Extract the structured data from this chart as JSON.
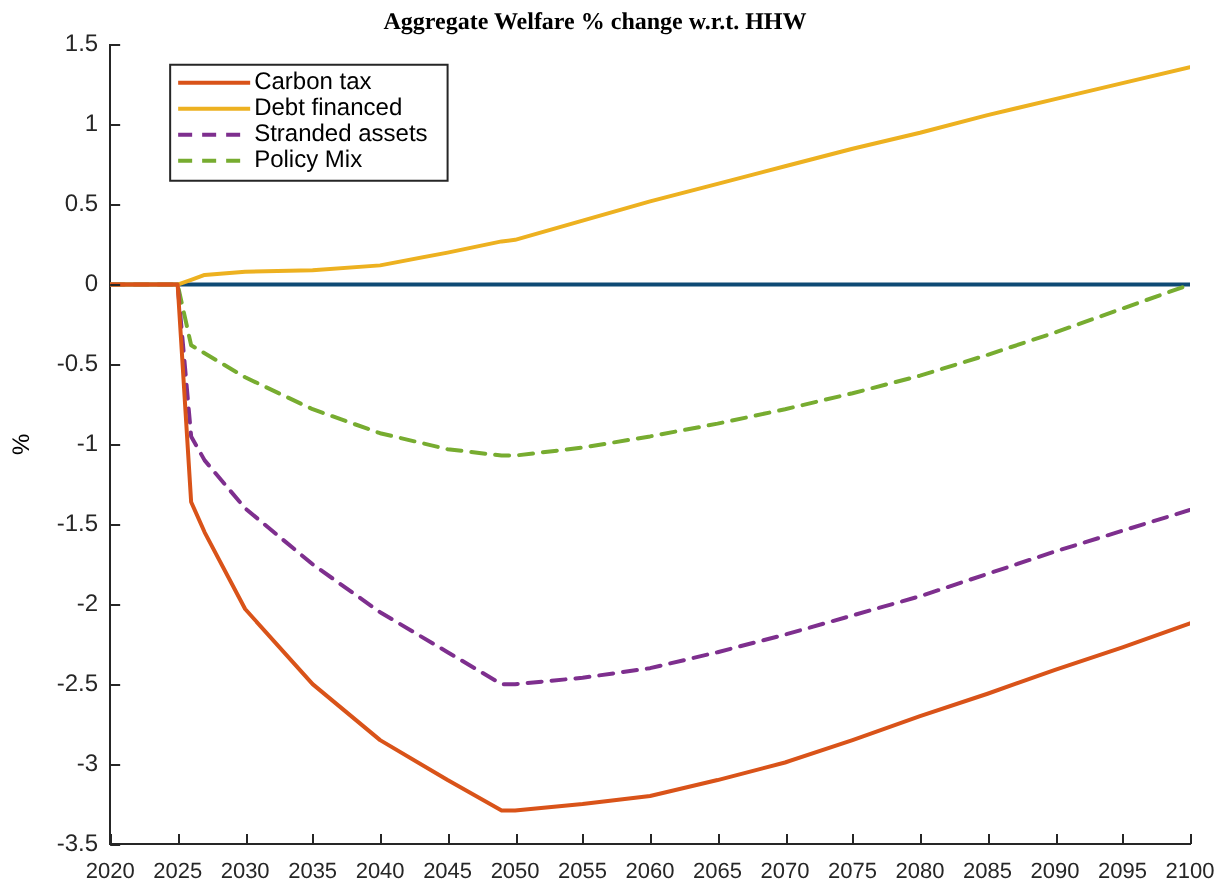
{
  "chart_data": {
    "type": "line",
    "title": "Aggregate Welfare % change w.r.t. HHW",
    "ylabel": "%",
    "x": [
      2020,
      2025,
      2026,
      2027,
      2030,
      2035,
      2040,
      2045,
      2049,
      2050,
      2055,
      2060,
      2065,
      2070,
      2075,
      2080,
      2085,
      2090,
      2095,
      2100
    ],
    "series": [
      {
        "name": "Carbon tax",
        "color": "#d95319",
        "line_style": "solid",
        "values": [
          0,
          0,
          -1.36,
          -1.55,
          -2.03,
          -2.5,
          -2.85,
          -3.1,
          -3.29,
          -3.29,
          -3.25,
          -3.2,
          -3.1,
          -2.99,
          -2.85,
          -2.7,
          -2.56,
          -2.41,
          -2.27,
          -2.12
        ]
      },
      {
        "name": "Debt financed",
        "color": "#edb120",
        "line_style": "solid",
        "values": [
          0,
          0,
          0.03,
          0.06,
          0.08,
          0.09,
          0.12,
          0.2,
          0.27,
          0.28,
          0.4,
          0.52,
          0.63,
          0.74,
          0.85,
          0.95,
          1.06,
          1.16,
          1.26,
          1.36
        ]
      },
      {
        "name": "Stranded assets",
        "color": "#7e2f8e",
        "line_style": "dashed",
        "values": [
          0,
          0,
          -0.95,
          -1.1,
          -1.4,
          -1.75,
          -2.05,
          -2.3,
          -2.5,
          -2.5,
          -2.46,
          -2.4,
          -2.3,
          -2.19,
          -2.07,
          -1.95,
          -1.81,
          -1.67,
          -1.54,
          -1.41
        ]
      },
      {
        "name": "Policy Mix",
        "color": "#77ac30",
        "line_style": "dashed",
        "values": [
          0,
          0,
          -0.38,
          -0.43,
          -0.58,
          -0.78,
          -0.93,
          -1.03,
          -1.07,
          -1.07,
          -1.02,
          -0.95,
          -0.87,
          -0.78,
          -0.68,
          -0.57,
          -0.44,
          -0.3,
          -0.15,
          0
        ]
      }
    ],
    "ref_lines": [
      {
        "axis": "y",
        "value": 0,
        "color": "#0e4a75",
        "line_style": "solid"
      }
    ],
    "xlim": [
      2020,
      2100
    ],
    "xticks": [
      2020,
      2025,
      2030,
      2035,
      2040,
      2045,
      2050,
      2055,
      2060,
      2065,
      2070,
      2075,
      2080,
      2085,
      2090,
      2095,
      2100
    ],
    "ylim": [
      -3.5,
      1.5
    ],
    "yticks": [
      -3.5,
      -3,
      -2.5,
      -2,
      -1.5,
      -1,
      -0.5,
      0,
      0.5,
      1,
      1.5
    ],
    "grid": false,
    "legend": "top left",
    "marker": "none"
  }
}
